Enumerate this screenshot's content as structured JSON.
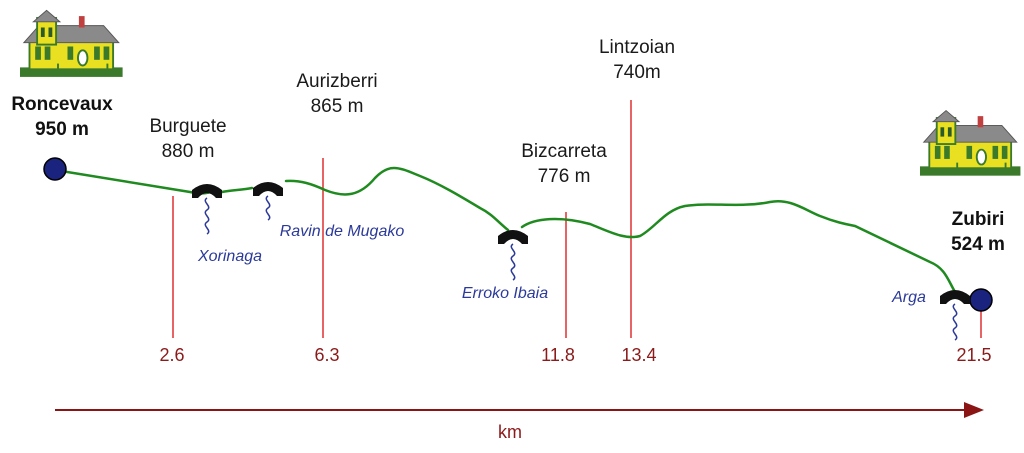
{
  "start": {
    "name": "Roncevaux",
    "elevation": "950 m"
  },
  "end": {
    "name": "Zubiri",
    "elevation": "524 m"
  },
  "waypoints": [
    {
      "name": "Burguete",
      "elevation": "880 m",
      "km_label": "2.6"
    },
    {
      "name": "Aurizberri",
      "elevation": "865 m",
      "km_label": "6.3"
    },
    {
      "name": "Bizcarreta",
      "elevation": "776 m",
      "km_label": "11.8"
    },
    {
      "name": "Lintzoian",
      "elevation": "740m",
      "km_label": "13.4"
    }
  ],
  "end_km_label": "21.5",
  "rivers": [
    "Xorinaga",
    "Ravin de Mugako",
    "Erroko Ibaia",
    "Arga"
  ],
  "axis_label": "km",
  "colors": {
    "profile": "#1f8a1f",
    "marker_line": "#e03030",
    "km_text": "#8b1a1a",
    "axis_arrow": "#8b1414",
    "endpoint": "#1a237e",
    "river": "#2b3a9a",
    "house_body": "#e8e020",
    "house_roof": "#8a8a8a",
    "house_trim": "#3a7a2a"
  },
  "icons": [
    "house-icon",
    "bridge-icon",
    "river-squiggle-icon",
    "endpoint-dot-icon"
  ]
}
